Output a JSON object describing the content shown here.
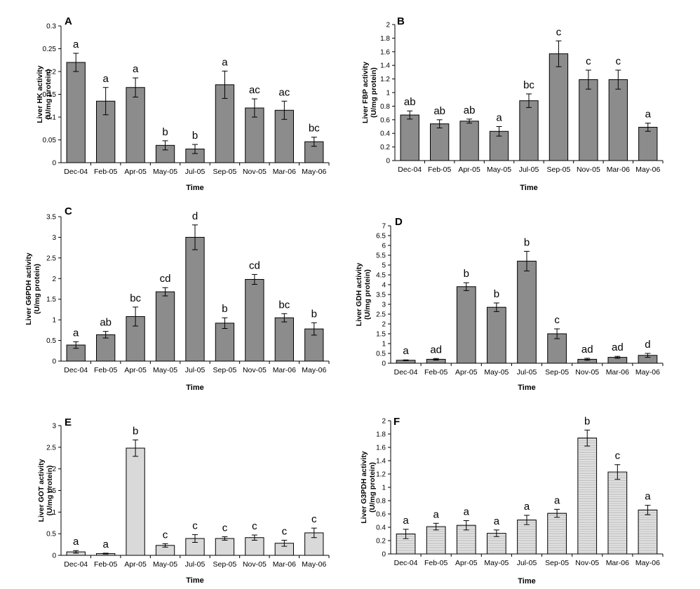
{
  "figure": {
    "colors": {
      "bar_dark": "#8c8c8c",
      "bar_light": "#d9d9d9",
      "bar_stripe": "#d4d4d4",
      "stroke": "#000000"
    }
  },
  "chart_data": [
    {
      "type": "bar",
      "panel": "A",
      "ylabel": [
        "Liver HK activity",
        "(U/mg protein)"
      ],
      "xlabel": "Time",
      "categories": [
        "Dec-04",
        "Feb-05",
        "Apr-05",
        "May-05",
        "Jul-05",
        "Sep-05",
        "Nov-05",
        "Mar-06",
        "May-06"
      ],
      "values": [
        0.22,
        0.135,
        0.165,
        0.038,
        0.03,
        0.171,
        0.12,
        0.115,
        0.046
      ],
      "errors": [
        0.02,
        0.03,
        0.021,
        0.01,
        0.01,
        0.03,
        0.02,
        0.02,
        0.01
      ],
      "letters": [
        "a",
        "a",
        "a",
        "b",
        "b",
        "a",
        "ac",
        "ac",
        "bc"
      ],
      "ylim": [
        0,
        0.3
      ],
      "yticks": [
        "0",
        "0.05",
        "0.1",
        "0.15",
        "0.2",
        "0.25",
        "0.3"
      ],
      "fill": "dark"
    },
    {
      "type": "bar",
      "panel": "B",
      "ylabel": [
        "Liver FBP activity",
        "(U/mg protein)"
      ],
      "xlabel": "Time",
      "categories": [
        "Dec-04",
        "Feb-05",
        "Apr-05",
        "May-05",
        "Jul-05",
        "Sep-05",
        "Nov-05",
        "Mar-06",
        "May-06"
      ],
      "values": [
        0.67,
        0.54,
        0.58,
        0.43,
        0.88,
        1.57,
        1.19,
        1.19,
        0.49
      ],
      "errors": [
        0.06,
        0.06,
        0.03,
        0.07,
        0.1,
        0.19,
        0.14,
        0.14,
        0.06
      ],
      "letters": [
        "ab",
        "ab",
        "ab",
        "a",
        "bc",
        "c",
        "c",
        "c",
        "a"
      ],
      "ylim": [
        0,
        2
      ],
      "yticks": [
        "0",
        "0.2",
        "0.4",
        "0.6",
        "0.8",
        "1",
        "1.2",
        "1.4",
        "1.6",
        "1.8",
        "2"
      ],
      "fill": "dark"
    },
    {
      "type": "bar",
      "panel": "C",
      "ylabel": [
        "Liver G6PDH activity",
        "(U/mg protein)"
      ],
      "xlabel": "Time",
      "categories": [
        "Dec-04",
        "Feb-05",
        "Apr-05",
        "May-05",
        "Jul-05",
        "Sep-05",
        "Nov-05",
        "Mar-06",
        "May-06"
      ],
      "values": [
        0.39,
        0.64,
        1.08,
        1.68,
        3.0,
        0.92,
        1.98,
        1.05,
        0.78
      ],
      "errors": [
        0.08,
        0.08,
        0.23,
        0.1,
        0.3,
        0.13,
        0.12,
        0.1,
        0.15
      ],
      "letters": [
        "a",
        "ab",
        "bc",
        "cd",
        "d",
        "b",
        "cd",
        "bc",
        "b"
      ],
      "ylim": [
        0,
        3.5
      ],
      "yticks": [
        "0",
        "0.5",
        "1",
        "1.5",
        "2",
        "2.5",
        "3",
        "3.5"
      ],
      "fill": "dark"
    },
    {
      "type": "bar",
      "panel": "D",
      "ylabel": [
        "Liver GDH activity",
        "(U/mg protein)"
      ],
      "xlabel": "Time",
      "categories": [
        "Dec-04",
        "Feb-05",
        "Apr-05",
        "May-05",
        "Jul-05",
        "Sep-05",
        "Nov-05",
        "Mar-06",
        "May-06"
      ],
      "values": [
        0.15,
        0.2,
        3.9,
        2.85,
        5.2,
        1.5,
        0.2,
        0.3,
        0.4
      ],
      "errors": [
        0.02,
        0.04,
        0.2,
        0.22,
        0.5,
        0.25,
        0.05,
        0.05,
        0.1
      ],
      "letters": [
        "a",
        "ad",
        "b",
        "b",
        "b",
        "c",
        "ad",
        "ad",
        "d"
      ],
      "ylim": [
        0,
        7
      ],
      "yticks": [
        "0",
        "0.5",
        "1",
        "1.5",
        "2",
        "2.5",
        "3",
        "3.5",
        "4",
        "4.5",
        "5",
        "5.5",
        "6",
        "6.5",
        "7"
      ],
      "fill": "dark"
    },
    {
      "type": "bar",
      "panel": "E",
      "ylabel": [
        "Liver GOT activity",
        "(U/mg protein)"
      ],
      "xlabel": "Time",
      "categories": [
        "Dec-04",
        "Feb-05",
        "Apr-05",
        "May-05",
        "Jul-05",
        "Sep-05",
        "Nov-05",
        "Mar-06",
        "May-06"
      ],
      "values": [
        0.08,
        0.04,
        2.48,
        0.23,
        0.39,
        0.39,
        0.41,
        0.28,
        0.52
      ],
      "errors": [
        0.03,
        0.01,
        0.19,
        0.04,
        0.09,
        0.04,
        0.06,
        0.07,
        0.11
      ],
      "letters": [
        "a",
        "a",
        "b",
        "c",
        "c",
        "c",
        "c",
        "c",
        "c"
      ],
      "ylim": [
        0,
        3
      ],
      "yticks": [
        "0",
        "0.5",
        "1",
        "1.5",
        "2",
        "2.5",
        "3"
      ],
      "fill": "light"
    },
    {
      "type": "bar",
      "panel": "F",
      "ylabel": [
        "Liver G3PDH activity",
        "(U/mg protein)"
      ],
      "xlabel": "Time",
      "categories": [
        "Dec-04",
        "Feb-05",
        "Apr-05",
        "May-05",
        "Jul-05",
        "Sep-05",
        "Nov-05",
        "Mar-06",
        "May-06"
      ],
      "values": [
        0.3,
        0.41,
        0.43,
        0.31,
        0.51,
        0.61,
        1.74,
        1.23,
        0.66
      ],
      "errors": [
        0.07,
        0.05,
        0.07,
        0.05,
        0.07,
        0.06,
        0.12,
        0.11,
        0.07
      ],
      "letters": [
        "a",
        "a",
        "a",
        "a",
        "a",
        "a",
        "b",
        "c",
        "a"
      ],
      "ylim": [
        0,
        2
      ],
      "yticks": [
        "0",
        "0.2",
        "0.4",
        "0.6",
        "0.8",
        "1",
        "1.2",
        "1.4",
        "1.6",
        "1.8",
        "2"
      ],
      "fill": "stripe"
    }
  ]
}
